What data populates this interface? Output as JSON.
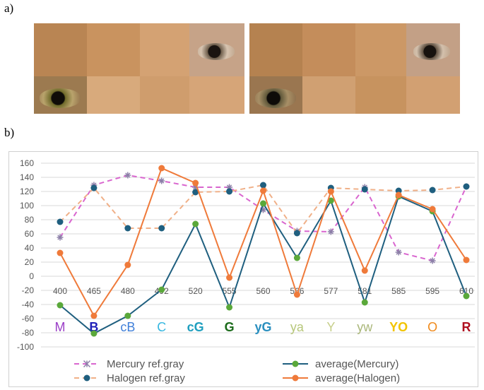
{
  "panels": {
    "a": "a)",
    "b": "b)"
  },
  "photos": [
    {
      "name": "photo-left-mercury"
    },
    {
      "name": "photo-right-halogen"
    }
  ],
  "chart_data": {
    "type": "line",
    "title": "",
    "xlabel": "",
    "ylabel": "",
    "ylim": [
      -100,
      160
    ],
    "yticks": [
      -100,
      -80,
      -60,
      -40,
      -20,
      0,
      20,
      40,
      60,
      80,
      100,
      120,
      140,
      160
    ],
    "grid": true,
    "legend_position": "bottom",
    "categories": [
      "400",
      "465",
      "480",
      "492",
      "520",
      "555",
      "560",
      "566",
      "577",
      "581",
      "585",
      "595",
      "610"
    ],
    "color_names": [
      {
        "text": "M",
        "color": "#9b3fc7"
      },
      {
        "text": "B",
        "color": "#1f1fb8"
      },
      {
        "text": "cB",
        "color": "#3f7fd9"
      },
      {
        "text": "C",
        "color": "#36b7e0"
      },
      {
        "text": "cG",
        "color": "#1f9fbf"
      },
      {
        "text": "G",
        "color": "#1b6b1b"
      },
      {
        "text": "yG",
        "color": "#2a8fbf"
      },
      {
        "text": "ya",
        "color": "#b7c77a"
      },
      {
        "text": "Y",
        "color": "#c7cf8a"
      },
      {
        "text": "yw",
        "color": "#aab77a"
      },
      {
        "text": "YO",
        "color": "#f2c400"
      },
      {
        "text": "O",
        "color": "#f08a1c"
      },
      {
        "text": "R",
        "color": "#b01020"
      }
    ],
    "series": [
      {
        "name": "Mercury ref.gray",
        "style": "dashed",
        "marker": "star",
        "color": "#d966cf",
        "marker_color": "#8c7fa8",
        "values": [
          55,
          129,
          143,
          135,
          126,
          126,
          94,
          64,
          63,
          126,
          34,
          22,
          127
        ]
      },
      {
        "name": "Halogen ref.gray",
        "style": "dashed",
        "marker": "circle",
        "color": "#f0b088",
        "marker_color": "#1f5f7f",
        "values": [
          77,
          125,
          68,
          68,
          119,
          120,
          129,
          61,
          125,
          123,
          121,
          122,
          127
        ]
      },
      {
        "name": "average(Mercury)",
        "style": "solid",
        "marker": "circle",
        "color": "#1f5f7f",
        "marker_color": "#5aa83a",
        "values": [
          -41,
          -81,
          -56,
          -19,
          74,
          -44,
          103,
          26,
          107,
          -37,
          113,
          92,
          -28
        ]
      },
      {
        "name": "average(Halogen)",
        "style": "solid",
        "marker": "circle",
        "color": "#ef7a3a",
        "marker_color": "#ef7a3a",
        "values": [
          33,
          -56,
          16,
          153,
          132,
          -2,
          121,
          -26,
          120,
          8,
          115,
          95,
          23
        ]
      }
    ]
  }
}
